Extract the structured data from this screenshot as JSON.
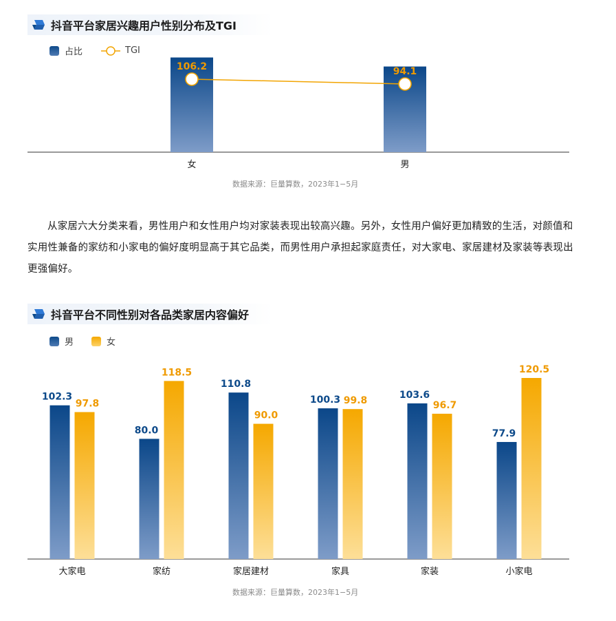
{
  "chart1": {
    "title": "抖音平台家居兴趣用户性别分布及TGI",
    "legend": {
      "bar": "占比",
      "line": "TGI"
    },
    "source": "数据来源：巨量算数，2023年1−5月"
  },
  "chart2": {
    "title": "抖音平台不同性别对各品类家居内容偏好",
    "legend": {
      "male": "男",
      "female": "女"
    },
    "source": "数据来源：巨量算数，2023年1−5月"
  },
  "paragraph": "从家居六大分类来看，男性用户和女性用户均对家装表现出较高兴趣。另外，女性用户偏好更加精致的生活，对颜值和实用性兼备的家纺和小家电的偏好度明显高于其它品类，而男性用户承担起家庭责任，对大家电、家居建材及家装等表现出更强偏好。",
  "colors": {
    "blue": "#0d4a8a",
    "gold": "#f5a800",
    "tgi": "#f2a400"
  },
  "chart_data": [
    {
      "type": "bar",
      "title": "抖音平台家居兴趣用户性别分布及TGI",
      "categories": [
        "女",
        "男"
      ],
      "series": [
        {
          "name": "占比",
          "values": [
            52.5,
            47.5
          ],
          "kind": "bar",
          "note": "bar values not labeled; estimated relative heights"
        },
        {
          "name": "TGI",
          "values": [
            106.2,
            94.1
          ],
          "kind": "line"
        }
      ],
      "legend": "top-left",
      "grid": false
    },
    {
      "type": "bar",
      "title": "抖音平台不同性别对各品类家居内容偏好",
      "categories": [
        "大家电",
        "家纺",
        "家居建材",
        "家具",
        "家装",
        "小家电"
      ],
      "series": [
        {
          "name": "男",
          "values": [
            102.3,
            80.0,
            110.8,
            100.3,
            103.6,
            77.9
          ]
        },
        {
          "name": "女",
          "values": [
            97.8,
            118.5,
            90.0,
            99.8,
            96.7,
            120.5
          ]
        }
      ],
      "ylim": [
        0,
        120.5
      ],
      "legend": "top-left",
      "grid": false
    }
  ]
}
